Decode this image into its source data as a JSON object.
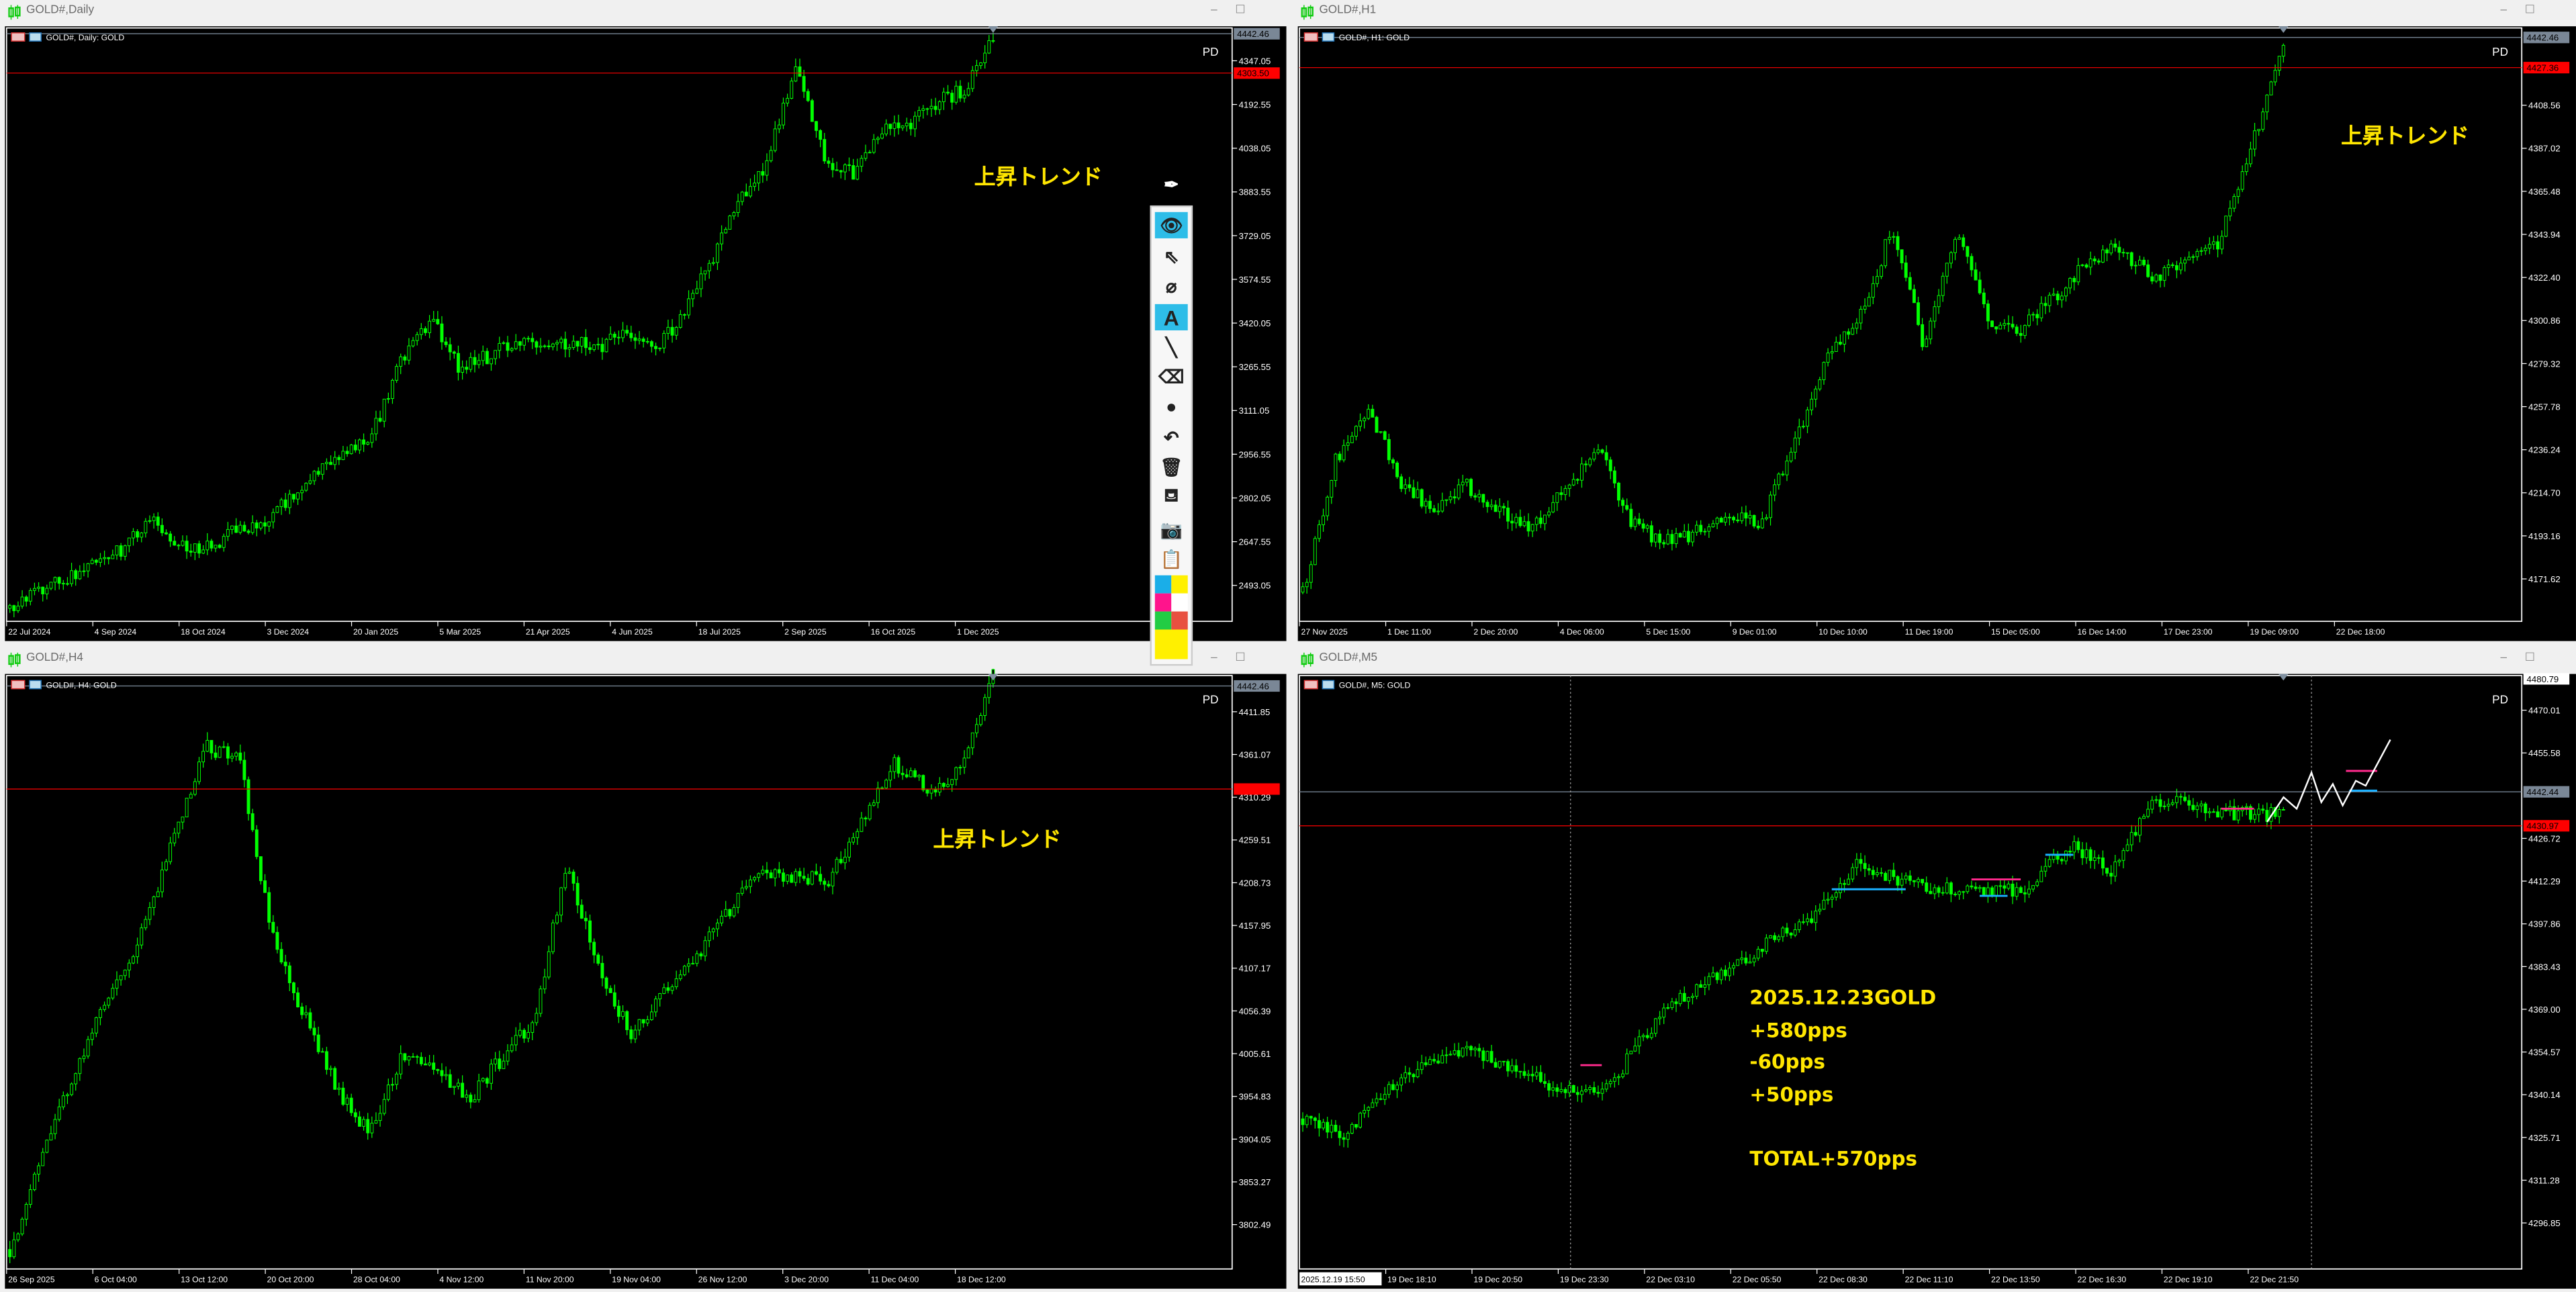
{
  "windows": [
    {
      "title": "GOLD#,Daily",
      "chart_label": "GOLD#, Daily:  GOLD",
      "pd": "PD",
      "trend_note": "上昇トレンド",
      "ask_label": "4442.46",
      "bid_label": "4303.50"
    },
    {
      "title": "GOLD#,H1",
      "chart_label": "GOLD#, H1:  GOLD",
      "pd": "PD",
      "trend_note": "上昇トレンド",
      "ask_label": "4442.46",
      "bid_label": "4427.36"
    },
    {
      "title": "GOLD#,H4",
      "chart_label": "GOLD#, H4:  GOLD",
      "pd": "PD",
      "trend_note": "上昇トレンド",
      "ask_label": "4442.46",
      "bid_label": ""
    },
    {
      "title": "GOLD#,M5",
      "chart_label": "GOLD#, M5:  GOLD",
      "pd": "PD",
      "trend_note": "",
      "ask_label": "4442.44",
      "bid_label": "4430.97",
      "top_label": "4480.79",
      "time_cursor": "2025.12.19 15:50",
      "result_lines": [
        "2025.12.23GOLD",
        "+580pps",
        "-60pps",
        "+50pps",
        "",
        "TOTAL+570pps"
      ]
    }
  ],
  "toolbar": {
    "items": [
      "pen-icon",
      "eye-icon",
      "cursor-arrow-icon",
      "stopwatch-off-icon",
      "text-icon",
      "line-icon",
      "eraser-icon",
      "dot-icon",
      "undo-icon",
      "trash-icon",
      "easel-icon",
      "camera-icon",
      "clipboard-icon"
    ],
    "active": [
      "eye-icon",
      "text-icon"
    ],
    "colors": [
      "#1aaee8",
      "#fff000",
      "#ff148c",
      "#ffffff",
      "#22cc44",
      "#e85040",
      "#fff000"
    ]
  },
  "colors": {
    "candle": "#00ff00",
    "bid_line": "#ff0000",
    "ask_line": "#8090a0",
    "note": "#ffe600",
    "background": "#000000"
  },
  "chart_data": [
    {
      "type": "candlestick",
      "timeframe": "Daily",
      "ylim": [
        2366,
        4463
      ],
      "price_ticks": [
        "4347.05",
        "4192.55",
        "4038.05",
        "3883.55",
        "3729.05",
        "3574.55",
        "3420.05",
        "3265.55",
        "3111.05",
        "2956.55",
        "2802.05",
        "2647.55",
        "2493.05"
      ],
      "date_labels": [
        "22 Jul 2024",
        "4 Sep 2024",
        "18 Oct 2024",
        "3 Dec 2024",
        "20 Jan 2025",
        "5 Mar 2025",
        "21 Apr 2025",
        "4 Jun 2025",
        "18 Jul 2025",
        "2 Sep 2025",
        "16 Oct 2025",
        "1 Dec 2025"
      ],
      "bid": 4303.5,
      "ask": 4442.46,
      "price_path": [
        2412,
        2480,
        2520,
        2560,
        2620,
        2720,
        2650,
        2620,
        2690,
        2720,
        2800,
        2900,
        2950,
        3050,
        3300,
        3430,
        3260,
        3300,
        3360,
        3330,
        3350,
        3340,
        3380,
        3330,
        3450,
        3650,
        3850,
        4000,
        4330,
        4000,
        3950,
        4100,
        4120,
        4200,
        4250,
        4440
      ]
    },
    {
      "type": "candlestick",
      "timeframe": "H1",
      "ylim": [
        4150.4,
        4447.2
      ],
      "price_ticks": [
        "4408.56",
        "4387.02",
        "4365.48",
        "4343.94",
        "4322.40",
        "4300.86",
        "4279.32",
        "4257.78",
        "4236.24",
        "4214.70",
        "4193.16",
        "4171.62"
      ],
      "date_labels": [
        "27 Nov 2025",
        "1 Dec 11:00",
        "2 Dec 20:00",
        "4 Dec 06:00",
        "5 Dec 15:00",
        "9 Dec 01:00",
        "10 Dec 10:00",
        "11 Dec 19:00",
        "15 Dec 05:00",
        "16 Dec 14:00",
        "17 Dec 23:00",
        "19 Dec 09:00",
        "22 Dec 18:00"
      ],
      "bid": 4427.36,
      "ask": 4442.46,
      "price_path": [
        4165,
        4231,
        4256,
        4220,
        4206,
        4218,
        4205,
        4198,
        4215,
        4239,
        4200,
        4190,
        4195,
        4206,
        4198,
        4239,
        4280,
        4300,
        4346,
        4289,
        4346,
        4300,
        4297,
        4313,
        4330,
        4338,
        4321,
        4330,
        4338,
        4387,
        4440
      ]
    },
    {
      "type": "candlestick",
      "timeframe": "H4",
      "ylim": [
        3749.8,
        4454.8
      ],
      "price_ticks": [
        "4411.85",
        "4361.07",
        "4310.29",
        "4259.51",
        "4208.73",
        "4157.95",
        "4107.17",
        "4056.39",
        "4005.61",
        "3954.83",
        "3904.05",
        "3853.27",
        "3802.49"
      ],
      "date_labels": [
        "26 Sep 2025",
        "6 Oct 04:00",
        "13 Oct 12:00",
        "20 Oct 20:00",
        "28 Oct 04:00",
        "4 Nov 12:00",
        "11 Nov 20:00",
        "19 Nov 04:00",
        "26 Nov 12:00",
        "3 Dec 20:00",
        "11 Dec 04:00",
        "18 Dec 12:00"
      ],
      "bid": 4320,
      "ask": 4442.46,
      "price_path": [
        3773,
        3880,
        3988,
        4080,
        4144,
        4260,
        4369,
        4359,
        4144,
        4050,
        3960,
        3910,
        4008,
        3990,
        3949,
        4000,
        4047,
        4232,
        4100,
        4027,
        4080,
        4125,
        4180,
        4222,
        4215,
        4212,
        4280,
        4349,
        4320,
        4339,
        4453
      ]
    },
    {
      "type": "candlestick",
      "timeframe": "M5",
      "ylim": [
        4281.3,
        4481.7
      ],
      "price_ticks": [
        "4470.01",
        "4455.58",
        "4426.72",
        "4412.29",
        "4397.86",
        "4383.43",
        "4369.00",
        "4354.57",
        "4340.14",
        "4325.71",
        "4311.28",
        "4296.85"
      ],
      "date_labels": [
        "19 Dec 18:10",
        "19 Dec 20:50",
        "19 Dec 23:30",
        "22 Dec 03:10",
        "22 Dec 05:50",
        "22 Dec 08:30",
        "22 Dec 11:10",
        "22 Dec 13:50",
        "22 Dec 16:30",
        "22 Dec 19:10",
        "22 Dec 21:50"
      ],
      "bid": 4430.97,
      "ask": 4442.44,
      "price_path": [
        4332,
        4327,
        4343,
        4350,
        4355,
        4348,
        4343,
        4339,
        4360,
        4375,
        4382,
        4393,
        4400,
        4418,
        4412,
        4410,
        4408,
        4410,
        4424,
        4416,
        4440,
        4437,
        4435,
        4435
      ]
    }
  ]
}
